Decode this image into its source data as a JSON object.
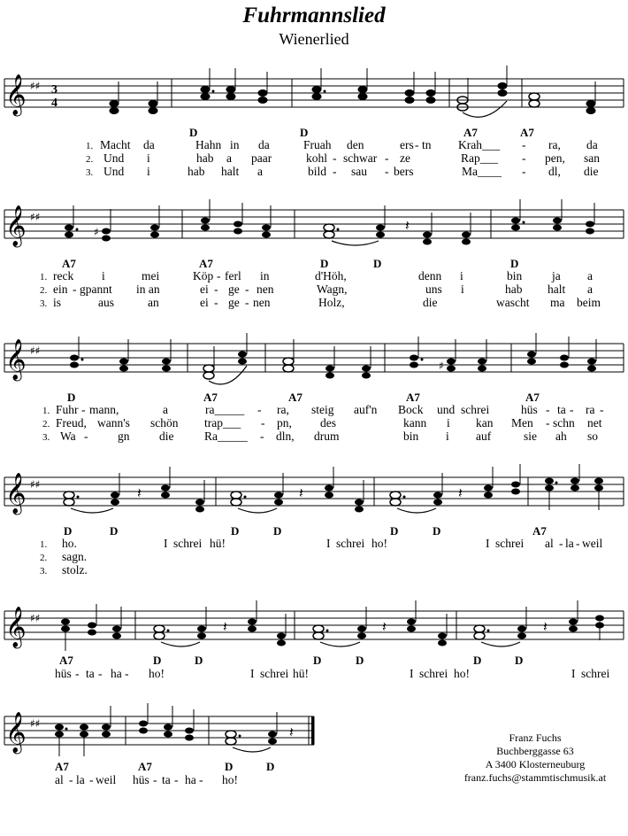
{
  "title": "Fuhrmannslied",
  "subtitle": "Wienerlied",
  "time_signature": {
    "top": "3",
    "bottom": "4"
  },
  "systems": [
    {
      "chords": [
        "D",
        "D",
        "A7",
        "A7"
      ],
      "verse_numbers": [
        "1.",
        "2.",
        "3."
      ],
      "verses": [
        [
          "Macht",
          "da",
          "Hahn",
          "in",
          "da",
          "Fruah",
          "den",
          "ers",
          "-",
          "tn",
          "Krah___",
          "-",
          "ra,",
          "da"
        ],
        [
          "Und",
          "i",
          "hab",
          "a",
          "paar",
          "kohl",
          "-",
          "schwar",
          "-",
          "ze",
          "Rap___",
          "-",
          "pen,",
          "san"
        ],
        [
          "Und",
          "i",
          "hab",
          "halt",
          "a",
          "bild",
          "-",
          "sau",
          "-",
          "bers",
          "Ma____",
          "-",
          "dl,",
          "die"
        ]
      ]
    },
    {
      "chords": [
        "A7",
        "A7",
        "D",
        "D",
        "D"
      ],
      "verse_numbers": [
        "1.",
        "2.",
        "3."
      ],
      "verses": [
        [
          "reck",
          "i",
          "mei",
          "Köp",
          "-",
          "ferl",
          "in",
          "d'Höh,",
          "denn",
          "i",
          "bin",
          "ja",
          "a"
        ],
        [
          "ein",
          "-",
          "gpannt",
          "in an",
          "ei",
          "-",
          "ge",
          "-",
          "nen",
          "Wagn,",
          "uns",
          "i",
          "hab",
          "halt",
          "a"
        ],
        [
          "is",
          "aus",
          "an",
          "ei",
          "-",
          "ge",
          "-",
          "nen",
          "Holz,",
          "die",
          "wascht",
          "ma",
          "beim"
        ]
      ]
    },
    {
      "chords": [
        "D",
        "A7",
        "A7",
        "A7",
        "A7"
      ],
      "verse_numbers": [
        "1.",
        "2.",
        "3."
      ],
      "verses": [
        [
          "Fuhr",
          "-",
          "mann,",
          "a",
          "ra_____",
          "-",
          "ra,",
          "steig",
          "auf'n",
          "Bock",
          "und",
          "schrei",
          "hüs",
          "-",
          "ta",
          "-",
          "ra",
          "-"
        ],
        [
          "Freud,",
          "wann's",
          "schön",
          "trap___",
          "-",
          "pn,",
          "des",
          "kann",
          "i",
          "kan",
          "Men",
          "-",
          "schn",
          "net"
        ],
        [
          "Wa",
          "-",
          "gn",
          "die",
          "Ra_____",
          "-",
          "dln,",
          "drum",
          "bin",
          "i",
          "auf",
          "sie",
          "ah",
          "so"
        ]
      ]
    },
    {
      "chords": [
        "D",
        "D",
        "D",
        "D",
        "D",
        "D",
        "A7"
      ],
      "verse_numbers": [
        "1.",
        "2.",
        "3."
      ],
      "verses": [
        [
          "ho.",
          "I",
          "schrei",
          "hü!",
          "I",
          "schrei",
          "ho!",
          "I",
          "schrei",
          "al",
          "-",
          "la",
          "-",
          "weil"
        ],
        [
          "sagn."
        ],
        [
          "stolz."
        ]
      ]
    },
    {
      "chords": [
        "A7",
        "D",
        "D",
        "D",
        "D",
        "D",
        "D"
      ],
      "verses": [
        [
          "hüs",
          "-",
          "ta",
          "-",
          "ha",
          "-",
          "ho!",
          "I",
          "schrei",
          "hü!",
          "I",
          "schrei",
          "ho!",
          "I",
          "schrei"
        ]
      ]
    },
    {
      "chords": [
        "A7",
        "A7",
        "D",
        "D"
      ],
      "verses": [
        [
          "al",
          "-",
          "la",
          "-",
          "weil",
          "hüs",
          "-",
          "ta",
          "-",
          "ha",
          "-",
          "ho!"
        ]
      ]
    }
  ],
  "credit": {
    "name": "Franz Fuchs",
    "street": "Buchberggasse 63",
    "city": "A 3400 Klosterneuburg",
    "email": "franz.fuchs@stammtischmusik.at"
  }
}
